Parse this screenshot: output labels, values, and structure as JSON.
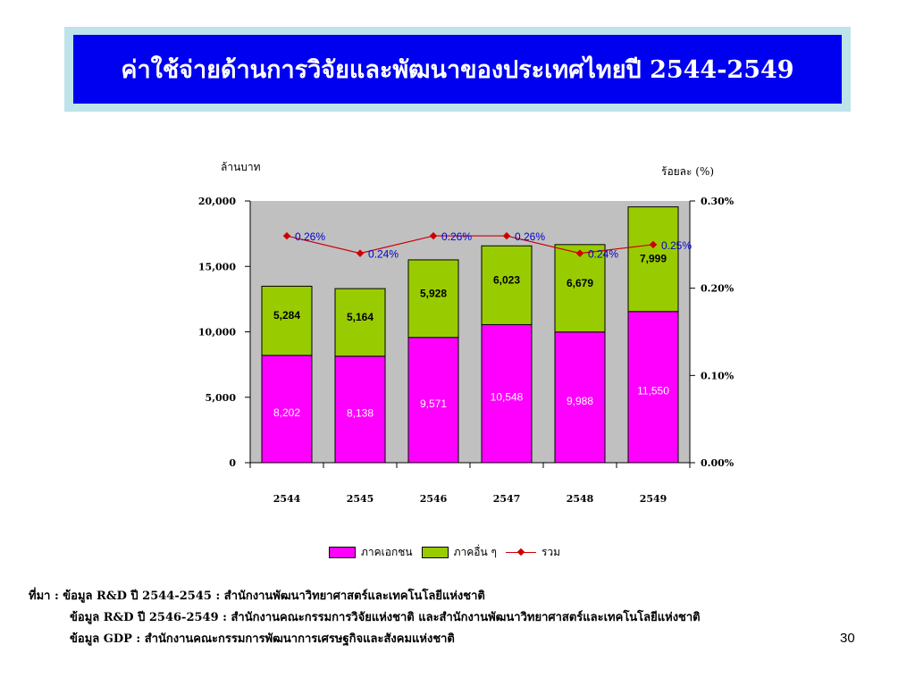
{
  "title": "ค่าใช้จ่ายด้านการวิจัยและพัฒนาของประเทศไทยปี 2544-2549",
  "chart_data": {
    "type": "bar",
    "stacked": true,
    "categories": [
      "2544",
      "2545",
      "2546",
      "2547",
      "2548",
      "2549"
    ],
    "series": [
      {
        "name": "ภาคเอกชน",
        "values": [
          8202,
          8138,
          9571,
          10548,
          9988,
          11550
        ],
        "labels": [
          "8,202",
          "8,138",
          "9,571",
          "10,548",
          "9,988",
          "11,550"
        ],
        "color": "#ff00ff"
      },
      {
        "name": "ภาคอื่น ๆ",
        "values": [
          5284,
          5164,
          5928,
          6023,
          6679,
          7999
        ],
        "labels": [
          "5,284",
          "5,164",
          "5,928",
          "6,023",
          "6,679",
          "7,999"
        ],
        "color": "#99cc00"
      }
    ],
    "line_series": {
      "name": "รวม",
      "values": [
        0.26,
        0.24,
        0.26,
        0.26,
        0.24,
        0.25
      ],
      "labels": [
        "0.26%",
        "0.24%",
        "0.26%",
        "0.26%",
        "0.24%",
        "0.25%"
      ],
      "color": "#cc0000",
      "axis": "right"
    },
    "ylabel": "ล้านบาท",
    "y2label": "ร้อยละ (%)",
    "ylim": [
      0,
      20000
    ],
    "y2lim": [
      0,
      0.3
    ],
    "yticks": [
      "0",
      "5,000",
      "10,000",
      "15,000",
      "20,000"
    ],
    "y2ticks": [
      "0.00%",
      "0.10%",
      "0.20%",
      "0.30%"
    ],
    "plot_background": "#c0c0c0",
    "grid": false,
    "legend_position": "bottom"
  },
  "source": {
    "line1": "ที่มา : ข้อมูล R&D ปี 2544-2545 : สำนักงานพัฒนาวิทยาศาสตร์และเทคโนโลยีแห่งชาติ",
    "line2": "ข้อมูล R&D ปี 2546-2549 : สำนักงานคณะกรรมการวิจัยแห่งชาติ  และสำนักงานพัฒนาวิทยาศาสตร์และเทคโนโลยีแห่งชาติ",
    "line3": "ข้อมูล GDP : สำนักงานคณะกรรมการพัฒนาการเศรษฐกิจและสังคมแห่งชาติ"
  },
  "page_number": "30"
}
